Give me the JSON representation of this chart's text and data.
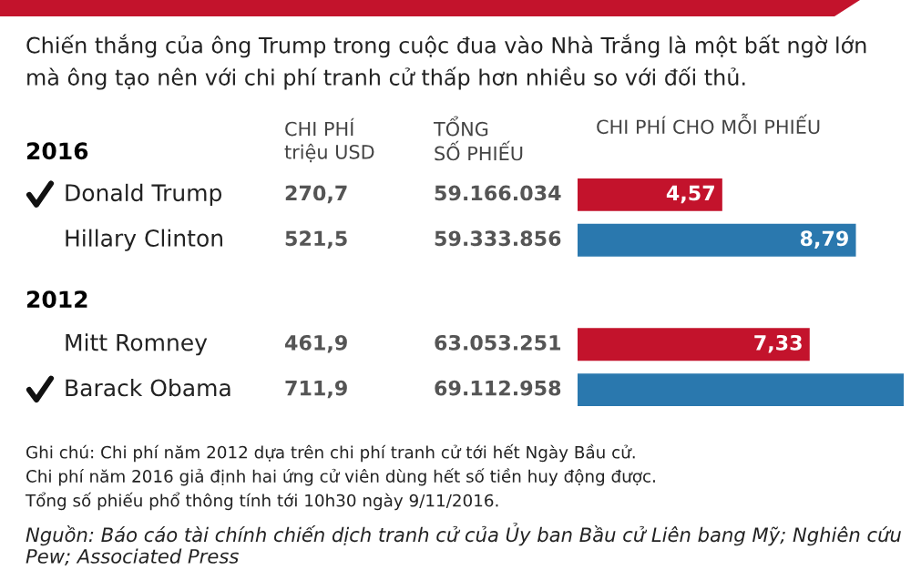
{
  "chart_data": {
    "type": "bar",
    "orientation": "horizontal",
    "subtitle": "Chiến thắng của ông Trump trong cuộc đua vào Nhà Trắng là một bất ngờ lớn\nmà ông tạo nên với chi phí tranh cử thấp hơn nhiều so với đối thủ.",
    "xlabel": "CHI PHÍ CHO MỖI PHIẾU",
    "categories": [
      "Donald Trump",
      "Hillary Clinton",
      "Mitt Romney",
      "Barack Obama"
    ],
    "values": [
      4.57,
      8.79,
      7.33,
      10.3
    ],
    "colors": [
      "#c3132c",
      "#2a78ae",
      "#c3132c",
      "#2a78ae"
    ],
    "value_labels": [
      "4,57",
      "8,79",
      "7,33",
      null
    ],
    "annotations": [
      "2016",
      "2012",
      "CHI PHÍ\ntriệu USD",
      "TỔNG\nSỐ PHIẾU",
      "270,7",
      "521,5",
      "461,9",
      "711,9",
      "59.166.034",
      "59.333.856",
      "63.053.251",
      "69.112.958",
      "Ghi chú: Chi phí năm 2012 dựa trên chi phí tranh cử tới hết Ngày Bầu cử.\nChi phí năm 2016 giả định hai ứng cử viên dùng hết số tiền huy động được.\nTổng số phiếu phổ thông tính tới 10h30 ngày 9/11/2016.",
      "Nguồn: Báo cáo tài chính chiến dịch tranh cử của Ủy ban Bầu cử Liên bang Mỹ; Nghiên cứu Pew; Associated Press"
    ]
  }
}
